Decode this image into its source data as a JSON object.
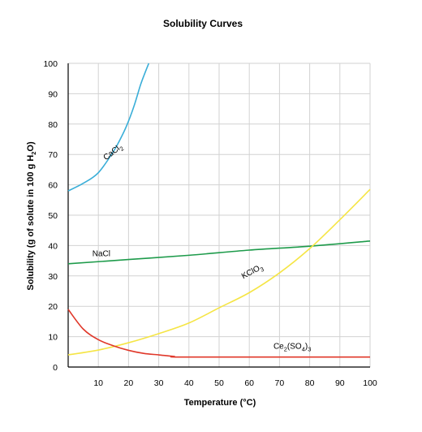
{
  "chart_data": {
    "type": "line",
    "title": "Solubility Curves",
    "xlabel": "Temperature (°C)",
    "ylabel_parts": [
      "Solubility (g of solute in 100 g H",
      "2",
      "O)"
    ],
    "xlim": [
      0,
      100
    ],
    "ylim": [
      0,
      100
    ],
    "x_ticks": [
      10,
      20,
      30,
      40,
      50,
      60,
      70,
      80,
      90,
      100
    ],
    "y_ticks": [
      0,
      10,
      20,
      30,
      40,
      50,
      60,
      70,
      80,
      90,
      100
    ],
    "grid": true,
    "series": [
      {
        "name": "CaCl2",
        "label_parts": [
          "CaCl",
          "2"
        ],
        "color": "#3aaed8",
        "x": [
          0,
          5,
          10,
          15,
          18,
          20,
          22,
          24,
          25.5,
          26.7
        ],
        "y": [
          58,
          60.5,
          64,
          71,
          76.5,
          81,
          86.5,
          93,
          97,
          100
        ]
      },
      {
        "name": "NaCl",
        "label_parts": [
          "NaCl"
        ],
        "color": "#1e9b4b",
        "x": [
          0,
          20,
          40,
          60,
          80,
          100
        ],
        "y": [
          34,
          35.4,
          36.8,
          38.5,
          39.8,
          41.5
        ]
      },
      {
        "name": "KClO3",
        "label_parts": [
          "KClO",
          "3"
        ],
        "color": "#f5e545",
        "x": [
          0,
          10,
          20,
          30,
          40,
          50,
          60,
          70,
          80,
          90,
          100
        ],
        "y": [
          4,
          5.6,
          8,
          11,
          14.5,
          19.5,
          24.5,
          31,
          39,
          48.5,
          58.5
        ]
      },
      {
        "name": "Ce2(SO4)3",
        "label_parts": [
          "Ce",
          "2",
          "(SO",
          "4",
          ")",
          "3"
        ],
        "color": "#e0382a",
        "x": [
          0,
          5,
          10,
          15,
          20,
          25,
          30,
          35,
          40,
          100
        ],
        "y": [
          19,
          12.5,
          9,
          7,
          5.5,
          4.5,
          4,
          3.5,
          3.3,
          3.3
        ]
      }
    ]
  }
}
